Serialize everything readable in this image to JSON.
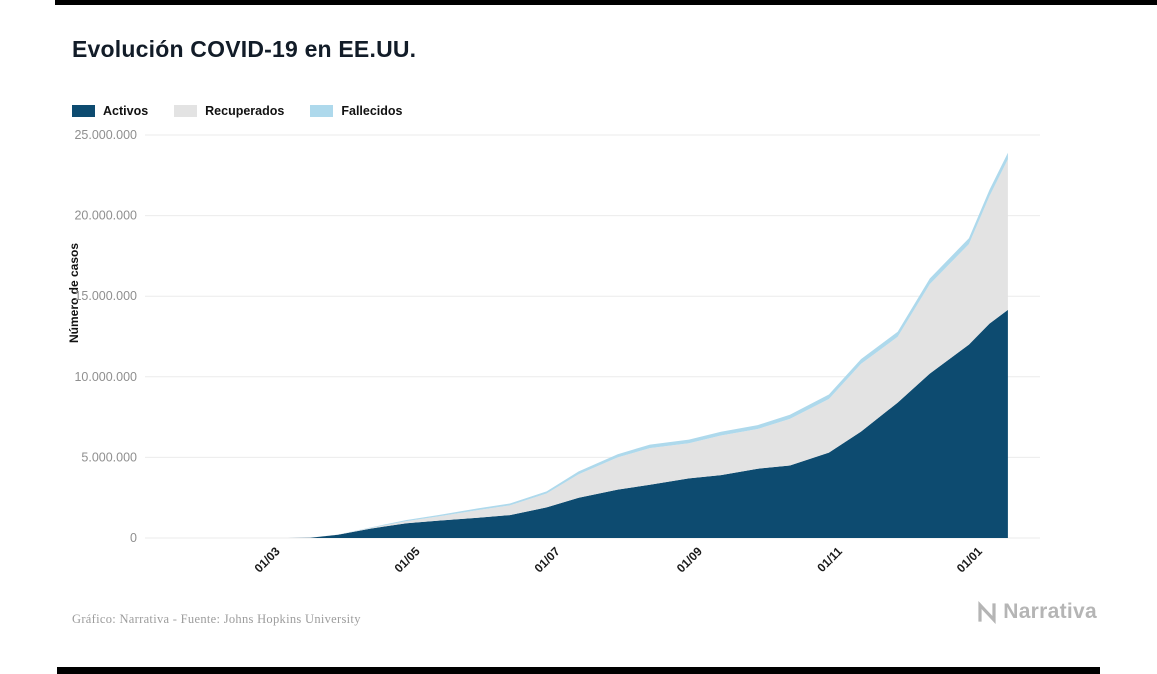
{
  "page": {
    "source_note": "Gráfico: Narrativa - Fuente: Johns Hopkins University",
    "brand": "Narrativa"
  },
  "chart_data": {
    "type": "area",
    "stacked": true,
    "title": "Evolución COVID-19 en EE.UU.",
    "ylabel": "Número de casos",
    "xlabel": "",
    "ylim": [
      0,
      25000000
    ],
    "grid": true,
    "legend_position": "top-left",
    "x_domain": [
      "2020-01-08",
      "2021-02-01"
    ],
    "series": [
      {
        "name": "Activos",
        "key": "activos",
        "color": "#0d4b70"
      },
      {
        "name": "Recuperados",
        "key": "recuperados",
        "color": "#e3e3e3"
      },
      {
        "name": "Fallecidos",
        "key": "fallecidos",
        "color": "#aed9ec"
      }
    ],
    "yticks": [
      {
        "value": 0,
        "label": "0"
      },
      {
        "value": 5000000,
        "label": "5.000.000"
      },
      {
        "value": 10000000,
        "label": "10.000.000"
      },
      {
        "value": 15000000,
        "label": "15.000.000"
      },
      {
        "value": 20000000,
        "label": "20.000.000"
      },
      {
        "value": 25000000,
        "label": "25.000.000"
      }
    ],
    "xticks": [
      {
        "date": "2020-03-01",
        "label": "01/03"
      },
      {
        "date": "2020-05-01",
        "label": "01/05"
      },
      {
        "date": "2020-07-01",
        "label": "01/07"
      },
      {
        "date": "2020-09-01",
        "label": "01/09"
      },
      {
        "date": "2020-11-01",
        "label": "01/11"
      },
      {
        "date": "2021-01-01",
        "label": "01/01"
      }
    ],
    "points": [
      {
        "date": "2020-03-01",
        "activos": 60,
        "recuperados": 10,
        "fallecidos": 2
      },
      {
        "date": "2020-03-10",
        "activos": 900,
        "recuperados": 100,
        "fallecidos": 30
      },
      {
        "date": "2020-03-20",
        "activos": 18000,
        "recuperados": 300,
        "fallecidos": 280
      },
      {
        "date": "2020-04-01",
        "activos": 200000,
        "recuperados": 9000,
        "fallecidos": 5000
      },
      {
        "date": "2020-04-15",
        "activos": 580000,
        "recuperados": 40000,
        "fallecidos": 28000
      },
      {
        "date": "2020-05-01",
        "activos": 920000,
        "recuperados": 130000,
        "fallecidos": 68000
      },
      {
        "date": "2020-05-15",
        "activos": 1080000,
        "recuperados": 260000,
        "fallecidos": 88000
      },
      {
        "date": "2020-06-01",
        "activos": 1260000,
        "recuperados": 470000,
        "fallecidos": 107000
      },
      {
        "date": "2020-06-15",
        "activos": 1420000,
        "recuperados": 600000,
        "fallecidos": 118000
      },
      {
        "date": "2020-07-01",
        "activos": 1900000,
        "recuperados": 860000,
        "fallecidos": 132000
      },
      {
        "date": "2020-07-15",
        "activos": 2500000,
        "recuperados": 1450000,
        "fallecidos": 180000
      },
      {
        "date": "2020-08-01",
        "activos": 3000000,
        "recuperados": 2000000,
        "fallecidos": 200000
      },
      {
        "date": "2020-08-15",
        "activos": 3300000,
        "recuperados": 2280000,
        "fallecidos": 215000
      },
      {
        "date": "2020-09-01",
        "activos": 3700000,
        "recuperados": 2180000,
        "fallecidos": 225000
      },
      {
        "date": "2020-09-15",
        "activos": 3900000,
        "recuperados": 2460000,
        "fallecidos": 235000
      },
      {
        "date": "2020-10-01",
        "activos": 4300000,
        "recuperados": 2460000,
        "fallecidos": 245000
      },
      {
        "date": "2020-10-15",
        "activos": 4500000,
        "recuperados": 2890000,
        "fallecidos": 260000
      },
      {
        "date": "2020-11-01",
        "activos": 5300000,
        "recuperados": 3320000,
        "fallecidos": 280000
      },
      {
        "date": "2020-11-15",
        "activos": 6600000,
        "recuperados": 4200000,
        "fallecidos": 300000
      },
      {
        "date": "2020-12-01",
        "activos": 8400000,
        "recuperados": 4080000,
        "fallecidos": 320000
      },
      {
        "date": "2020-12-15",
        "activos": 10200000,
        "recuperados": 5550000,
        "fallecidos": 350000
      },
      {
        "date": "2021-01-01",
        "activos": 12000000,
        "recuperados": 6230000,
        "fallecidos": 370000
      },
      {
        "date": "2021-01-10",
        "activos": 13300000,
        "recuperados": 7910000,
        "fallecidos": 390000
      },
      {
        "date": "2021-01-18",
        "activos": 14150000,
        "recuperados": 9340000,
        "fallecidos": 410000
      }
    ]
  }
}
